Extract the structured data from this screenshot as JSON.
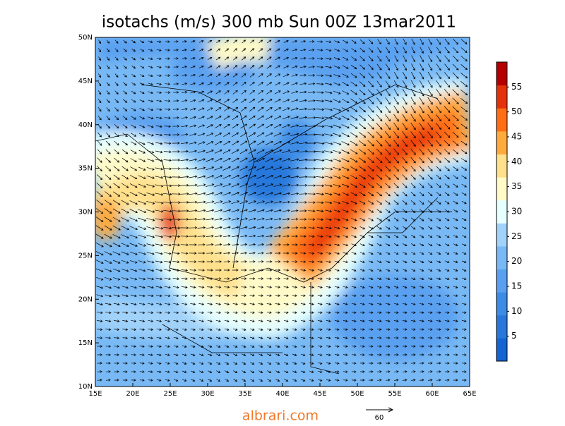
{
  "title": "isotachs (m/s) 300 mb Sun 00Z 13mar2011",
  "map": {
    "lat_labels": [
      "50N",
      "45N",
      "40N",
      "35N",
      "30N",
      "25N",
      "20N",
      "15N",
      "10N"
    ],
    "lon_labels": [
      "15E",
      "20E",
      "25E",
      "30E",
      "35E",
      "40E",
      "45E",
      "50E",
      "55E",
      "60E",
      "65E"
    ]
  },
  "colorbar": {
    "range": [
      0,
      60
    ],
    "ticks": [
      5,
      10,
      15,
      20,
      25,
      30,
      35,
      40,
      45,
      50,
      55
    ],
    "colors": [
      "#1464d2",
      "#2878dc",
      "#3c8ce6",
      "#5aa0f0",
      "#78b9f5",
      "#a0d2fa",
      "#e6ffff",
      "#fffac8",
      "#ffe08c",
      "#ffaa3c",
      "#ff6e14",
      "#e6320a",
      "#b40000"
    ]
  },
  "watermark": "albrari.com",
  "reference_vector": {
    "label": 60
  }
}
